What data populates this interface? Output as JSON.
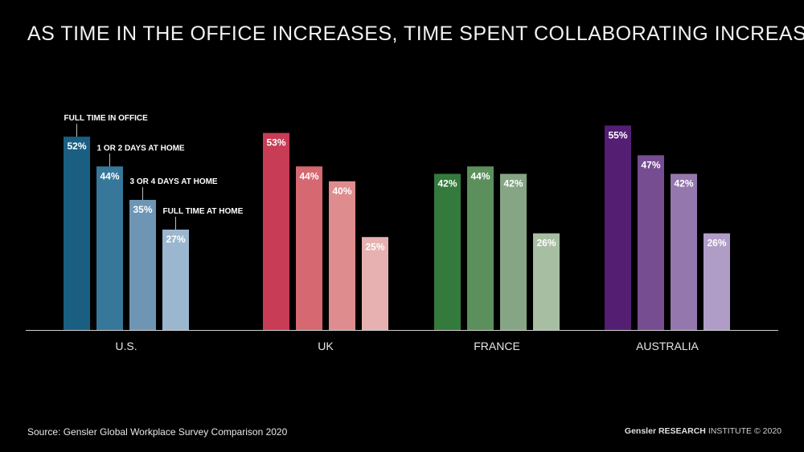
{
  "title": "AS TIME IN THE OFFICE INCREASES, TIME SPENT COLLABORATING INCREASES",
  "source": "Source: Gensler Global Workplace Survey Comparison 2020",
  "brand": {
    "name": "Gensler",
    "research": "RESEARCH",
    "institute": "INSTITUTE",
    "copyright": "© 2020"
  },
  "chart_data": {
    "type": "bar",
    "categories": [
      "U.S.",
      "UK",
      "FRANCE",
      "AUSTRALIA"
    ],
    "series": [
      {
        "name": "FULL TIME IN OFFICE",
        "values": [
          52,
          53,
          42,
          55
        ]
      },
      {
        "name": "1 OR 2 DAYS AT HOME",
        "values": [
          44,
          44,
          44,
          47
        ]
      },
      {
        "name": "3 OR 4 DAYS AT HOME",
        "values": [
          35,
          40,
          42,
          42
        ]
      },
      {
        "name": "FULL TIME AT HOME",
        "values": [
          27,
          25,
          26,
          26
        ]
      }
    ],
    "value_suffix": "%",
    "ylim": [
      0,
      55
    ],
    "colors": {
      "U.S.": [
        "#1a5f82",
        "#37779a",
        "#6e96b4",
        "#9bb7cf"
      ],
      "UK": [
        "#c83c55",
        "#d56870",
        "#de8c8e",
        "#e8b1b1"
      ],
      "FRANCE": [
        "#357a3d",
        "#5b8f5c",
        "#86a584",
        "#a7bea3"
      ],
      "AUSTRALIA": [
        "#541e73",
        "#774d91",
        "#9478ad",
        "#af9dc7"
      ]
    },
    "axis_color": "#d0d0d0",
    "legend_placement": "callouts above U.S. bars"
  }
}
